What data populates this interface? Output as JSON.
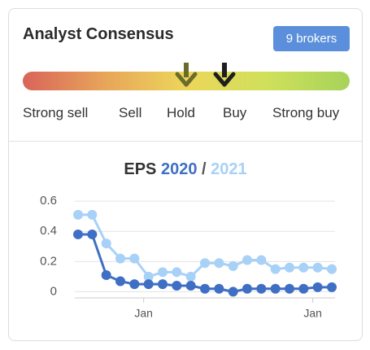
{
  "header": {
    "title": "Analyst Consensus",
    "badge": "9 brokers"
  },
  "gauge": {
    "labels": [
      "Strong sell",
      "Sell",
      "Hold",
      "Buy",
      "Strong buy"
    ]
  },
  "chart_data": {
    "type": "line",
    "title": "EPS",
    "title_separator": "/",
    "categories": [
      null,
      null,
      null,
      null,
      null,
      "Jan",
      null,
      null,
      null,
      null,
      null,
      null,
      null,
      null,
      null,
      null,
      null,
      "Jan",
      null
    ],
    "series": [
      {
        "name": "2020",
        "color": "#3f6fc4",
        "values": [
          0.38,
          0.38,
          0.11,
          0.07,
          0.05,
          0.05,
          0.05,
          0.04,
          0.04,
          0.02,
          0.02,
          0.0,
          0.02,
          0.02,
          0.02,
          0.02,
          0.02,
          0.03,
          0.03
        ]
      },
      {
        "name": "2021",
        "color": "#a8d1f7",
        "values": [
          0.51,
          0.51,
          0.32,
          0.22,
          0.22,
          0.1,
          0.13,
          0.13,
          0.1,
          0.19,
          0.19,
          0.17,
          0.21,
          0.21,
          0.15,
          0.16,
          0.16,
          0.16,
          0.15
        ]
      }
    ],
    "ylim": [
      -0.03,
      0.66
    ],
    "yticks": [
      0,
      0.2,
      0.4,
      0.6
    ],
    "grid": true
  }
}
